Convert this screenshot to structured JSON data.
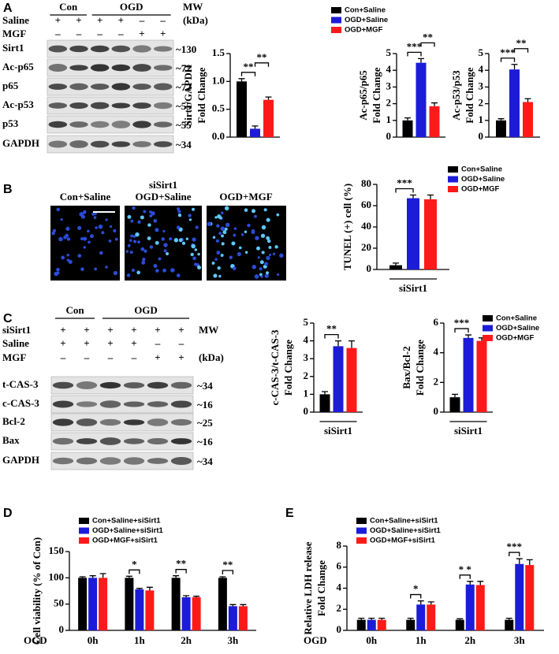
{
  "panel_labels": [
    "A",
    "B",
    "C",
    "D",
    "E"
  ],
  "blots": [
    {
      "groups": [
        "Con",
        "OGD"
      ],
      "treatments": [
        {
          "name": "Saline",
          "signs": [
            "+",
            "+",
            "+",
            "+",
            "–",
            "–"
          ]
        },
        {
          "name": "MGF",
          "signs": [
            "–",
            "–",
            "–",
            "–",
            "+",
            "+"
          ]
        }
      ],
      "mw_header": [
        "MW",
        "(kDa)"
      ],
      "rows": [
        {
          "protein": "Sirt1",
          "mw": "~130"
        },
        {
          "protein": "Ac-p65",
          "mw": "~72"
        },
        {
          "protein": "p65",
          "mw": "~72"
        },
        {
          "protein": "Ac-p53",
          "mw": "~55"
        },
        {
          "protein": "p53",
          "mw": "~55"
        },
        {
          "protein": "GAPDH",
          "mw": "~34"
        }
      ]
    },
    {
      "groups": [
        "Con",
        "OGD"
      ],
      "treatments": [
        {
          "name": "siSirt1",
          "signs": [
            "+",
            "+",
            "+",
            "+",
            "+",
            "+"
          ]
        },
        {
          "name": "Saline",
          "signs": [
            "+",
            "+",
            "+",
            "+",
            "–",
            "–"
          ]
        },
        {
          "name": "MGF",
          "signs": [
            "–",
            "–",
            "–",
            "–",
            "+",
            "+"
          ]
        }
      ],
      "mw_header": [
        "MW",
        "(kDa)"
      ],
      "rows": [
        {
          "protein": "t-CAS-3",
          "mw": "~34"
        },
        {
          "protein": "c-CAS-3",
          "mw": "~16"
        },
        {
          "protein": "Bcl-2",
          "mw": "~25"
        },
        {
          "protein": "Bax",
          "mw": "~16"
        },
        {
          "protein": "GAPDH",
          "mw": "~34"
        }
      ]
    }
  ],
  "images": {
    "header": "siSirt1",
    "labels": [
      "Con+Saline",
      "OGD+Saline",
      "OGD+MGF"
    ]
  },
  "chart_data": [
    {
      "type": "bar",
      "ylabel": [
        "Sirt1/GAPDH",
        "Fold Change"
      ],
      "series": [
        {
          "color": "#000000",
          "values": [
            1.0
          ],
          "errors": [
            0.05
          ]
        },
        {
          "color": "#1c1cd8",
          "values": [
            0.15
          ],
          "errors": [
            0.05
          ]
        },
        {
          "color": "#ff1a1a",
          "values": [
            0.67
          ],
          "errors": [
            0.05
          ]
        }
      ],
      "ylim": [
        0,
        1.5
      ],
      "yticks": [
        {
          "value": 0,
          "label": "0.0"
        },
        0.5,
        {
          "value": 1,
          "label": "1.0"
        },
        1.5
      ],
      "annotations": [
        "**",
        "**"
      ]
    },
    {
      "type": "bar",
      "ylabel": [
        "Ac-p65/p65",
        "Fold Change"
      ],
      "series": [
        {
          "name": "Con+Saline",
          "color": "#000000",
          "values": [
            1.0
          ],
          "errors": [
            0.15
          ]
        },
        {
          "name": "OGD+Saline",
          "color": "#1c1cd8",
          "values": [
            4.45
          ],
          "errors": [
            0.25
          ]
        },
        {
          "name": "OGD+MGF",
          "color": "#ff1a1a",
          "values": [
            1.85
          ],
          "errors": [
            0.2
          ]
        }
      ],
      "ylim": [
        0,
        5
      ],
      "yticks": [
        0,
        1,
        2,
        3,
        4,
        5
      ],
      "annotations": [
        "***",
        "**"
      ]
    },
    {
      "type": "bar",
      "ylabel": [
        "Ac-p53/p53",
        "Fold Change"
      ],
      "series": [
        {
          "color": "#000000",
          "values": [
            1.0
          ],
          "errors": [
            0.1
          ]
        },
        {
          "color": "#1c1cd8",
          "values": [
            4.05
          ],
          "errors": [
            0.3
          ]
        },
        {
          "color": "#ff1a1a",
          "values": [
            2.1
          ],
          "errors": [
            0.2
          ]
        }
      ],
      "ylim": [
        0,
        5
      ],
      "yticks": [
        0,
        1,
        2,
        3,
        4,
        5
      ],
      "annotations": [
        "***",
        "**"
      ]
    },
    {
      "type": "bar",
      "ylabel": [
        "TUNEL (+) cell (%)"
      ],
      "xlabel": "siSirt1",
      "series": [
        {
          "name": "Con+Saline",
          "color": "#000000",
          "values": [
            4
          ],
          "errors": [
            2
          ]
        },
        {
          "name": "OGD+Saline",
          "color": "#1c1cd8",
          "values": [
            67
          ],
          "errors": [
            3
          ]
        },
        {
          "name": "OGD+MGF",
          "color": "#ff1a1a",
          "values": [
            66
          ],
          "errors": [
            4
          ]
        }
      ],
      "ylim": [
        0,
        80
      ],
      "yticks": [
        0,
        20,
        40,
        60,
        80
      ],
      "annotations": [
        "***",
        null
      ]
    },
    {
      "type": "bar",
      "ylabel": [
        "c-CAS-3/t-CAS-3",
        "Fold Change"
      ],
      "xlabel": "siSirt1",
      "series": [
        {
          "color": "#000000",
          "values": [
            1.0
          ],
          "errors": [
            0.15
          ]
        },
        {
          "color": "#1c1cd8",
          "values": [
            3.7
          ],
          "errors": [
            0.3
          ]
        },
        {
          "color": "#ff1a1a",
          "values": [
            3.6
          ],
          "errors": [
            0.4
          ]
        }
      ],
      "ylim": [
        0,
        5
      ],
      "yticks": [
        0,
        1,
        2,
        3,
        4,
        5
      ],
      "annotations": [
        "**",
        null
      ]
    },
    {
      "type": "bar",
      "ylabel": [
        "Bax/Bcl-2",
        "Fold Change"
      ],
      "xlabel": "siSirt1",
      "series": [
        {
          "name": "Con+Saline",
          "color": "#000000",
          "values": [
            1.0
          ],
          "errors": [
            0.2
          ]
        },
        {
          "name": "OGD+Saline",
          "color": "#1c1cd8",
          "values": [
            5.0
          ],
          "errors": [
            0.2
          ]
        },
        {
          "name": "OGD+MGF",
          "color": "#ff1a1a",
          "values": [
            4.8
          ],
          "errors": [
            0.2
          ]
        }
      ],
      "ylim": [
        0,
        6
      ],
      "yticks": [
        0,
        2,
        4,
        6
      ],
      "annotations": [
        "***",
        null
      ]
    },
    {
      "type": "grouped-bar",
      "ylabel": [
        "Cell viability (% of Con)"
      ],
      "xlabel": "OGD",
      "categories": [
        "0h",
        "1h",
        "2h",
        "3h"
      ],
      "series": [
        {
          "name": "Con+Saline+siSirt1",
          "color": "#000000",
          "values": [
            100,
            100,
            100,
            100
          ],
          "errors": [
            2,
            3,
            4,
            2
          ]
        },
        {
          "name": "OGD+Saline+siSirt1",
          "color": "#1c1cd8",
          "values": [
            100,
            78,
            63,
            46
          ],
          "errors": [
            4,
            2,
            3,
            3
          ]
        },
        {
          "name": "OGD+MGF+siSirt1",
          "color": "#ff1a1a",
          "values": [
            100,
            76,
            63,
            46
          ],
          "errors": [
            8,
            6,
            2,
            3
          ]
        }
      ],
      "ylim": [
        0,
        150
      ],
      "yticks": [
        0,
        50,
        100,
        150
      ],
      "annotations": [
        null,
        "*",
        "**",
        "**"
      ]
    },
    {
      "type": "grouped-bar",
      "ylabel": [
        "Relative LDH release",
        "Fold Change"
      ],
      "xlabel": "OGD",
      "categories": [
        "0h",
        "1h",
        "2h",
        "3h"
      ],
      "series": [
        {
          "name": "Con+Saline+siSirt1",
          "color": "#000000",
          "values": [
            1,
            1,
            1,
            1
          ],
          "errors": [
            0.15,
            0.15,
            0.1,
            0.15
          ]
        },
        {
          "name": "OGD+Saline+siSirt1",
          "color": "#1c1cd8",
          "values": [
            1,
            2.45,
            4.35,
            6.3
          ],
          "errors": [
            0.15,
            0.35,
            0.3,
            0.5
          ]
        },
        {
          "name": "OGD+MGF+siSirt1",
          "color": "#ff1a1a",
          "values": [
            1,
            2.45,
            4.3,
            6.2
          ],
          "errors": [
            0.15,
            0.25,
            0.35,
            0.5
          ]
        }
      ],
      "ylim": [
        0,
        8
      ],
      "yticks": [
        0,
        2,
        4,
        6,
        8
      ],
      "annotations": [
        null,
        "*",
        "* *",
        "***"
      ]
    }
  ]
}
